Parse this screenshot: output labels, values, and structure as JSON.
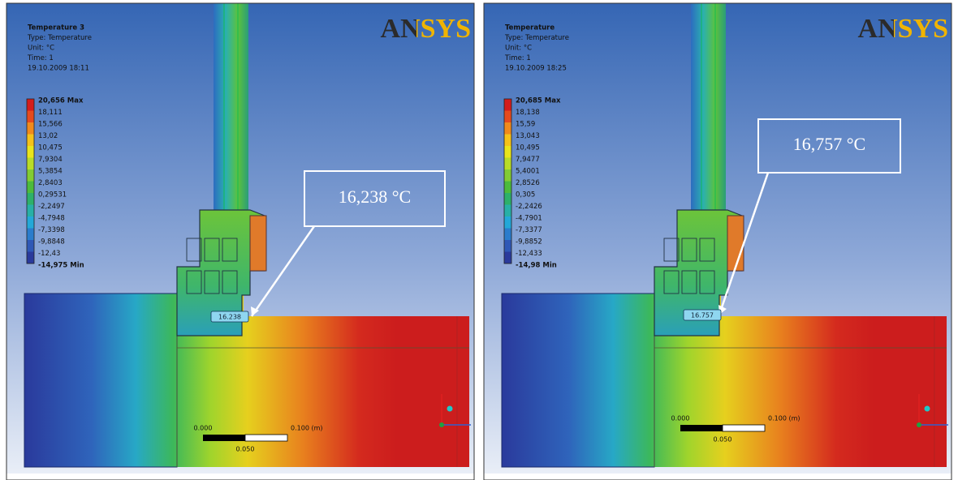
{
  "panels": [
    {
      "title": "Temperature 3",
      "type": "Type: Temperature",
      "unit": "Unit: °C",
      "time": "Time: 1",
      "date": "19.10.2009 18:11",
      "legend": [
        "20,656 Max",
        "18,111",
        "15,566",
        "13,02",
        "10,475",
        "7,9304",
        "5,3854",
        "2,8403",
        "0,29531",
        "-2,2497",
        "-4,7948",
        "-7,3398",
        "-9,8848",
        "-12,43",
        "-14,975 Min"
      ],
      "logo": "ANSYS",
      "callout": "16,238 °C",
      "probe": "16.238",
      "scale": {
        "start": "0.000",
        "end": "0.100 (m)",
        "mid": "0.050"
      }
    },
    {
      "title": "Temperature",
      "type": "Type: Temperature",
      "unit": "Unit: °C",
      "time": "Time: 1",
      "date": "19.10.2009 18:25",
      "legend": [
        "20,685 Max",
        "18,138",
        "15,59",
        "13,043",
        "10,495",
        "7,9477",
        "5,4001",
        "2,8526",
        "0,305",
        "-2,2426",
        "-4,7901",
        "-7,3377",
        "-9,8852",
        "-12,433",
        "-14,98 Min"
      ],
      "logo": "ANSYS",
      "callout": "16,757 °C",
      "probe": "16.757",
      "scale": {
        "start": "0.000",
        "end": "0.100 (m)",
        "mid": "0.050"
      }
    }
  ]
}
